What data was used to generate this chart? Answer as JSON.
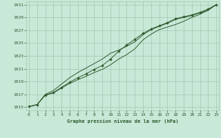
{
  "title": "Graphe pression niveau de la mer (hPa)",
  "bg_color": "#c8e8d8",
  "grid_color": "#a0c8b0",
  "line_color": "#2d5a2d",
  "tick_label_color": "#2d5a2d",
  "x_values": [
    0,
    1,
    2,
    3,
    4,
    5,
    6,
    7,
    8,
    9,
    10,
    11,
    12,
    13,
    14,
    15,
    16,
    17,
    18,
    19,
    20,
    21,
    22,
    23
  ],
  "line1": [
    1015.1,
    1015.4,
    1016.9,
    1017.2,
    1018.0,
    1018.7,
    1019.3,
    1019.8,
    1020.4,
    1020.9,
    1021.6,
    1022.5,
    1023.2,
    1024.1,
    1025.5,
    1026.4,
    1027.1,
    1027.5,
    1027.9,
    1028.4,
    1029.0,
    1029.5,
    1030.1,
    1031.0
  ],
  "line2": [
    1015.1,
    1015.4,
    1016.9,
    1017.3,
    1018.1,
    1018.9,
    1019.6,
    1020.2,
    1020.9,
    1021.5,
    1022.5,
    1023.7,
    1024.7,
    1025.6,
    1026.5,
    1027.2,
    1027.7,
    1028.2,
    1028.8,
    1029.1,
    1029.4,
    1029.8,
    1030.3,
    1031.0
  ],
  "line3": [
    1015.1,
    1015.4,
    1017.0,
    1017.6,
    1018.6,
    1019.6,
    1020.4,
    1021.1,
    1021.8,
    1022.5,
    1023.4,
    1023.9,
    1024.5,
    1025.2,
    1026.3,
    1027.1,
    1027.6,
    1028.1,
    1028.7,
    1029.0,
    1029.3,
    1029.7,
    1030.2,
    1031.0
  ],
  "ylim": [
    1014.5,
    1031.5
  ],
  "xlim": [
    -0.3,
    23.3
  ],
  "yticks": [
    1015,
    1017,
    1019,
    1021,
    1023,
    1025,
    1027,
    1029,
    1031
  ],
  "xticks": [
    0,
    1,
    2,
    3,
    4,
    5,
    6,
    7,
    8,
    9,
    10,
    11,
    12,
    13,
    14,
    15,
    16,
    17,
    18,
    19,
    20,
    21,
    22,
    23
  ]
}
